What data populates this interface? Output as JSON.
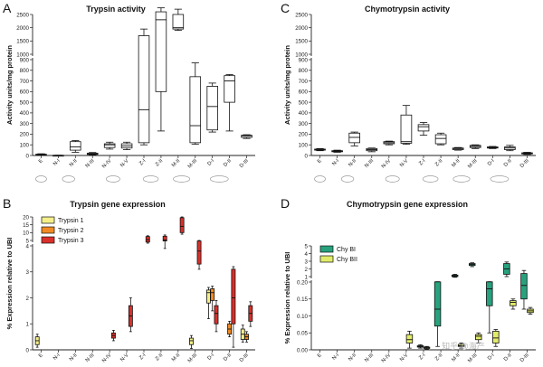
{
  "figure": {
    "x_categories": [
      "E",
      "N-I",
      "N-II",
      "N-III",
      "N-IV",
      "N-V",
      "Z-I",
      "Z-II",
      "M-II",
      "M-III",
      "D-I",
      "D-II",
      "D-III"
    ],
    "watermark": "知乎 @海产"
  },
  "chart_data": [
    {
      "panel_letter": "A",
      "type": "box",
      "title": "Trypsin activity",
      "ylabel": "Activity units/mg protein",
      "axis_break": true,
      "y_ticks_lower": [
        0,
        100,
        200,
        300,
        400,
        500,
        600,
        700,
        800,
        900
      ],
      "y_ticks_upper": [
        1000,
        1500,
        2000,
        2500
      ],
      "boxes": [
        {
          "x": "E",
          "min": 0,
          "q1": 4,
          "med": 8,
          "q3": 12,
          "max": 16
        },
        {
          "x": "N-I",
          "min": 0,
          "q1": 0,
          "med": 1,
          "q3": 2,
          "max": 3
        },
        {
          "x": "N-II",
          "min": 30,
          "q1": 50,
          "med": 80,
          "q3": 130,
          "max": 140
        },
        {
          "x": "N-III",
          "min": 5,
          "q1": 10,
          "med": 15,
          "q3": 22,
          "max": 28
        },
        {
          "x": "N-IV",
          "min": 60,
          "q1": 75,
          "med": 100,
          "q3": 110,
          "max": 125
        },
        {
          "x": "N-V",
          "min": 55,
          "q1": 70,
          "med": 90,
          "q3": 110,
          "max": 125
        },
        {
          "x": "Z-I",
          "min": 100,
          "q1": 120,
          "med": 430,
          "q3": 1700,
          "max": 1950
        },
        {
          "x": "Z-II",
          "min": 230,
          "q1": 600,
          "med": 2300,
          "q3": 2600,
          "max": 2750
        },
        {
          "x": "M-II",
          "min": 1900,
          "q1": 1950,
          "med": 2000,
          "q3": 2500,
          "max": 2700
        },
        {
          "x": "M-III",
          "min": 105,
          "q1": 120,
          "med": 280,
          "q3": 740,
          "max": 870
        },
        {
          "x": "D-I",
          "min": 220,
          "q1": 240,
          "med": 460,
          "q3": 650,
          "max": 680
        },
        {
          "x": "D-II",
          "min": 230,
          "q1": 500,
          "med": 700,
          "q3": 750,
          "max": 760
        },
        {
          "x": "D-III",
          "min": 160,
          "q1": 170,
          "med": 185,
          "q3": 190,
          "max": 195
        }
      ]
    },
    {
      "panel_letter": "B",
      "type": "box",
      "title": "Trypsin gene expression",
      "ylabel": "% Expression relative to UBI",
      "axis_break": true,
      "y_ticks_lower": [
        0,
        1,
        2,
        3,
        4
      ],
      "y_ticks_upper": [
        5,
        10,
        15,
        20
      ],
      "series": [
        {
          "name": "Trypsin 1",
          "color": "#f5ef8a",
          "boxes": [
            {
              "x": "E",
              "min": 0.1,
              "q1": 0.2,
              "med": 0.35,
              "q3": 0.5,
              "max": 0.6
            },
            {
              "x": "M-III",
              "min": 0.05,
              "q1": 0.2,
              "med": 0.35,
              "q3": 0.45,
              "max": 0.55
            },
            {
              "x": "D-I",
              "min": 1.2,
              "q1": 1.8,
              "med": 2.2,
              "q3": 2.3,
              "max": 2.4
            },
            {
              "x": "D-III",
              "min": 0.3,
              "q1": 0.4,
              "med": 0.6,
              "q3": 0.8,
              "max": 0.95
            }
          ]
        },
        {
          "name": "Trypsin 2",
          "color": "#f08a24",
          "boxes": [
            {
              "x": "D-I",
              "min": 1.5,
              "q1": 1.9,
              "med": 2.2,
              "q3": 2.35,
              "max": 2.45
            },
            {
              "x": "D-II",
              "min": 0.5,
              "q1": 0.6,
              "med": 0.8,
              "q3": 1.0,
              "max": 1.1
            },
            {
              "x": "D-III",
              "min": 0.3,
              "q1": 0.4,
              "med": 0.5,
              "q3": 0.6,
              "max": 0.7
            }
          ]
        },
        {
          "name": "Trypsin 3",
          "color": "#d9302b",
          "boxes": [
            {
              "x": "N-IV",
              "min": 0.35,
              "q1": 0.45,
              "med": 0.55,
              "q3": 0.65,
              "max": 0.75
            },
            {
              "x": "N-V",
              "min": 0.7,
              "q1": 0.9,
              "med": 1.3,
              "q3": 1.7,
              "max": 2.0
            },
            {
              "x": "Z-I",
              "min": 4.5,
              "q1": 4.7,
              "med": 5.5,
              "q3": 7.5,
              "max": 8.0
            },
            {
              "x": "Z-II",
              "min": 3.9,
              "q1": 4.9,
              "med": 5.3,
              "q3": 7.7,
              "max": 8.5
            },
            {
              "x": "M-II",
              "min": 9.0,
              "q1": 10.0,
              "med": 14.0,
              "q3": 19.5,
              "max": 20.0
            },
            {
              "x": "M-III",
              "min": 3.1,
              "q1": 3.3,
              "med": 3.8,
              "q3": 4.9,
              "max": 5.0
            },
            {
              "x": "D-I",
              "min": 0.7,
              "q1": 1.0,
              "med": 1.4,
              "q3": 1.7,
              "max": 1.9
            },
            {
              "x": "D-II",
              "min": 0.1,
              "q1": 1.0,
              "med": 2.0,
              "q3": 3.1,
              "max": 3.2
            },
            {
              "x": "D-III",
              "min": 0.9,
              "q1": 1.1,
              "med": 1.4,
              "q3": 1.7,
              "max": 1.85
            }
          ]
        }
      ]
    },
    {
      "panel_letter": "C",
      "type": "box",
      "title": "Chymotrypsin activity",
      "ylabel": "Activity units/mg protein",
      "axis_break": true,
      "y_ticks_lower": [
        0,
        100,
        200,
        300,
        400,
        500,
        600,
        700,
        800,
        900
      ],
      "y_ticks_upper": [
        1000,
        1500,
        2000,
        2500
      ],
      "boxes": [
        {
          "x": "E",
          "min": 45,
          "q1": 50,
          "med": 55,
          "q3": 60,
          "max": 65
        },
        {
          "x": "N-I",
          "min": 30,
          "q1": 35,
          "med": 40,
          "q3": 45,
          "max": 50
        },
        {
          "x": "N-II",
          "min": 90,
          "q1": 120,
          "med": 170,
          "q3": 210,
          "max": 220
        },
        {
          "x": "N-III",
          "min": 35,
          "q1": 45,
          "med": 55,
          "q3": 65,
          "max": 70
        },
        {
          "x": "N-IV",
          "min": 100,
          "q1": 110,
          "med": 120,
          "q3": 130,
          "max": 135
        },
        {
          "x": "N-V",
          "min": 105,
          "q1": 115,
          "med": 130,
          "q3": 380,
          "max": 470
        },
        {
          "x": "Z-I",
          "min": 190,
          "q1": 230,
          "med": 270,
          "q3": 290,
          "max": 310
        },
        {
          "x": "Z-II",
          "min": 100,
          "q1": 110,
          "med": 160,
          "q3": 195,
          "max": 210
        },
        {
          "x": "M-II",
          "min": 50,
          "q1": 55,
          "med": 65,
          "q3": 70,
          "max": 75
        },
        {
          "x": "M-III",
          "min": 65,
          "q1": 75,
          "med": 85,
          "q3": 95,
          "max": 100
        },
        {
          "x": "D-I",
          "min": 65,
          "q1": 70,
          "med": 75,
          "q3": 80,
          "max": 85
        },
        {
          "x": "D-II",
          "min": 45,
          "q1": 55,
          "med": 70,
          "q3": 80,
          "max": 95
        },
        {
          "x": "D-III",
          "min": 10,
          "q1": 15,
          "med": 20,
          "q3": 25,
          "max": 30
        }
      ]
    },
    {
      "panel_letter": "D",
      "type": "box",
      "title": "Chymotrypsin gene expression",
      "ylabel": "% Expression relative to UBI",
      "axis_break": true,
      "y_ticks_lower": [
        0.0,
        0.05,
        0.1,
        0.15,
        0.2
      ],
      "y_ticks_upper": [
        1,
        2,
        3,
        4,
        5
      ],
      "series": [
        {
          "name": "Chy BI",
          "color": "#27a27d",
          "boxes": [
            {
              "x": "Z-I",
              "min": 0.005,
              "q1": 0.008,
              "med": 0.01,
              "q3": 0.012,
              "max": 0.015
            },
            {
              "x": "Z-II",
              "min": 0.01,
              "q1": 0.07,
              "med": 0.12,
              "q3": 0.22,
              "max": 0.25
            },
            {
              "x": "M-II",
              "min": 0.9,
              "q1": 1.0,
              "med": 1.1,
              "q3": 1.2,
              "max": 1.3
            },
            {
              "x": "M-III",
              "min": 2.3,
              "q1": 2.45,
              "med": 2.6,
              "q3": 2.7,
              "max": 2.8
            },
            {
              "x": "D-I",
              "min": 0.05,
              "q1": 0.13,
              "med": 0.18,
              "q3": 0.22,
              "max": 0.25
            },
            {
              "x": "D-II",
              "min": 1.0,
              "q1": 1.3,
              "med": 2.0,
              "q3": 2.7,
              "max": 2.9
            },
            {
              "x": "D-III",
              "min": 0.12,
              "q1": 0.15,
              "med": 0.19,
              "q3": 1.4,
              "max": 1.8
            }
          ]
        },
        {
          "name": "Chy BII",
          "color": "#e2ec6a",
          "boxes": [
            {
              "x": "N-V",
              "min": 0.005,
              "q1": 0.02,
              "med": 0.03,
              "q3": 0.045,
              "max": 0.055
            },
            {
              "x": "Z-I",
              "min": 0.002,
              "q1": 0.004,
              "med": 0.006,
              "q3": 0.008,
              "max": 0.01
            },
            {
              "x": "M-II",
              "min": 0.005,
              "q1": 0.01,
              "med": 0.012,
              "q3": 0.016,
              "max": 0.02
            },
            {
              "x": "M-III",
              "min": 0.02,
              "q1": 0.03,
              "med": 0.04,
              "q3": 0.045,
              "max": 0.05
            },
            {
              "x": "D-I",
              "min": 0.01,
              "q1": 0.02,
              "med": 0.035,
              "q3": 0.055,
              "max": 0.06
            },
            {
              "x": "D-II",
              "min": 0.12,
              "q1": 0.13,
              "med": 0.14,
              "q3": 0.145,
              "max": 0.15
            },
            {
              "x": "D-III",
              "min": 0.105,
              "q1": 0.11,
              "med": 0.115,
              "q3": 0.12,
              "max": 0.125
            }
          ]
        }
      ]
    }
  ]
}
